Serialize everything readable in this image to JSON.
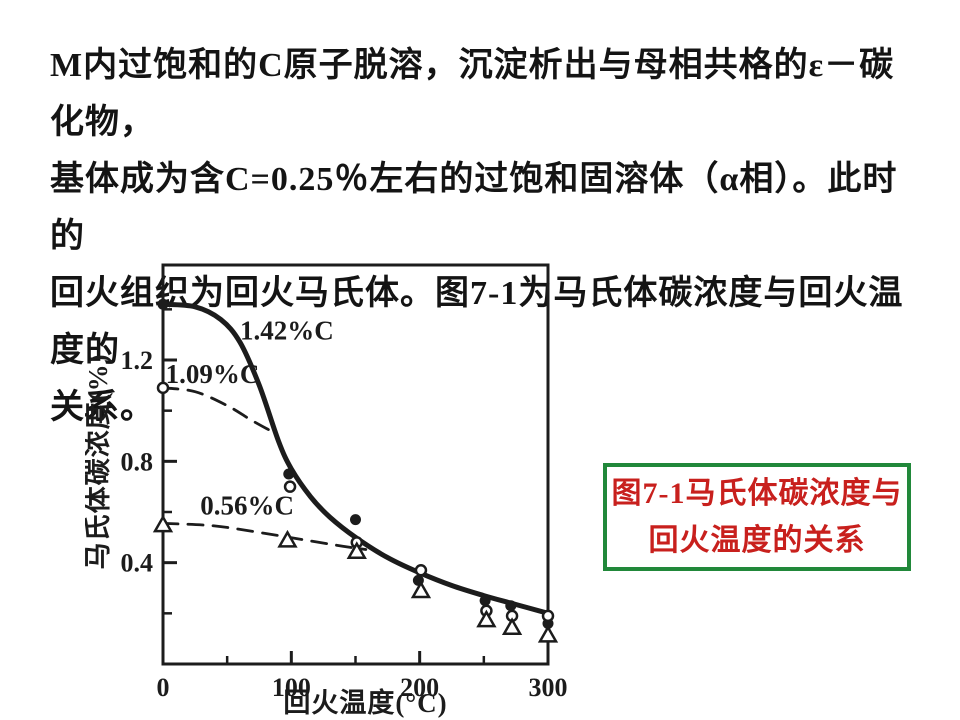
{
  "slide": {
    "paragraph_lines": [
      "M内过饱和的C原子脱溶，沉淀析出与母相共格的ε－碳化物，",
      "基体成为含C=0.25％左右的过饱和固溶体（α相）。此时的",
      "回火组织为回火马氏体。图7-1为马氏体碳浓度与回火温度的",
      "关系。"
    ],
    "caption": {
      "line1": "图7-1马氏体碳浓度与",
      "line2": "回火温度的关系",
      "text_color": "#c8201d",
      "border_color": "#21883a"
    }
  },
  "chart_data": {
    "type": "line",
    "title": "",
    "xlabel": "回火温度(°C)",
    "ylabel": "马氏体碳浓度(%)",
    "xlim": [
      0,
      300
    ],
    "ylim": [
      0,
      1.575
    ],
    "xticks": [
      0,
      100,
      200,
      300
    ],
    "xticks_minor": [
      50,
      150,
      250
    ],
    "yticks": [
      0.4,
      0.8,
      1.2
    ],
    "yticks_minor": [
      0.2,
      0.6,
      1.0,
      1.4
    ],
    "grid": false,
    "legend_position": "inline-curve-labels",
    "ink_color": "#1c1c1c",
    "series": [
      {
        "name": "1.42%C",
        "marker": "filled-circle",
        "line": "solid",
        "curve": [
          [
            0,
            1.42
          ],
          [
            25,
            1.41
          ],
          [
            45,
            1.36
          ],
          [
            60,
            1.27
          ],
          [
            75,
            1.1
          ],
          [
            90,
            0.88
          ],
          [
            100,
            0.77
          ],
          [
            115,
            0.66
          ],
          [
            130,
            0.58
          ],
          [
            150,
            0.5
          ],
          [
            175,
            0.42
          ],
          [
            200,
            0.36
          ],
          [
            225,
            0.31
          ],
          [
            250,
            0.27
          ],
          [
            275,
            0.235
          ],
          [
            300,
            0.2
          ]
        ],
        "points": [
          [
            0,
            1.42
          ],
          [
            98,
            0.75
          ],
          [
            150,
            0.57
          ],
          [
            199,
            0.33
          ],
          [
            251,
            0.25
          ],
          [
            271,
            0.23
          ],
          [
            300,
            0.16
          ]
        ],
        "label_pos": [
          60,
          1.28
        ]
      },
      {
        "name": "1.09%C",
        "marker": "open-circle",
        "line": "dashed",
        "curve": [
          [
            0,
            1.09
          ],
          [
            25,
            1.075
          ],
          [
            50,
            1.02
          ],
          [
            68,
            0.965
          ],
          [
            84,
            0.92
          ]
        ],
        "points": [
          [
            0,
            1.09
          ],
          [
            99,
            0.7
          ],
          [
            151,
            0.48
          ],
          [
            201,
            0.37
          ],
          [
            252,
            0.21
          ],
          [
            272,
            0.19
          ],
          [
            300,
            0.19
          ]
        ],
        "label_pos": [
          2,
          1.11
        ]
      },
      {
        "name": "0.56%C",
        "marker": "open-triangle",
        "line": "dashed",
        "curve": [
          [
            0,
            0.555
          ],
          [
            40,
            0.545
          ],
          [
            80,
            0.515
          ],
          [
            110,
            0.49
          ],
          [
            140,
            0.465
          ],
          [
            158,
            0.452
          ]
        ],
        "points": [
          [
            0,
            0.55
          ],
          [
            97,
            0.49
          ],
          [
            151,
            0.445
          ],
          [
            201,
            0.29
          ],
          [
            252,
            0.175
          ],
          [
            272,
            0.145
          ],
          [
            300,
            0.115
          ]
        ],
        "label_pos": [
          29,
          0.59
        ]
      }
    ]
  }
}
